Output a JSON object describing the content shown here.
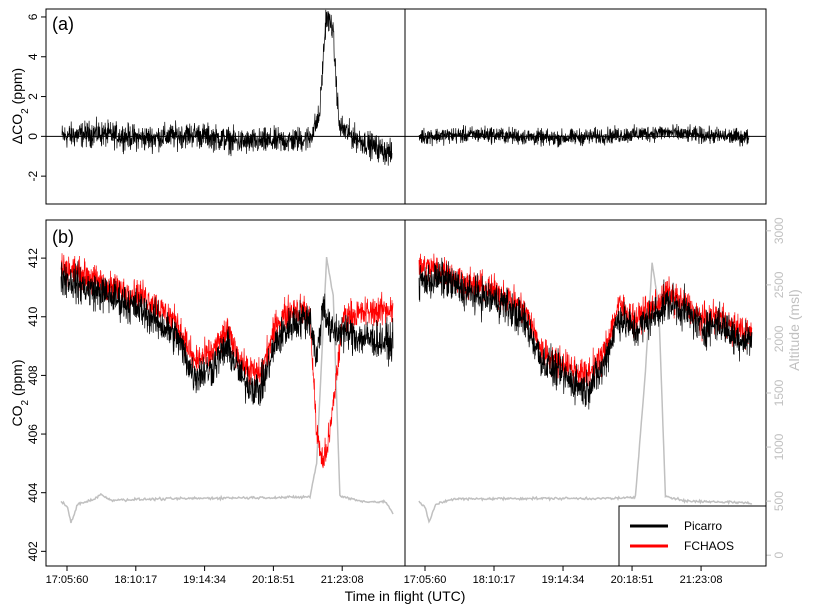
{
  "chart_data": [
    {
      "type": "line",
      "panel_label": "(a)",
      "ylabel_main": "ΔCO",
      "ylabel_sub": "2",
      "ylabel_unit": " (ppm)",
      "ylim": [
        -3.4,
        6.4
      ],
      "yticks": [
        "-2",
        "0",
        "2",
        "4",
        "6"
      ],
      "reference_line_y": 0,
      "series": [
        {
          "color": "#000000",
          "segment1": {
            "start": 0.0,
            "end": 1.0,
            "baseline": [
              [
                0,
                0
              ],
              [
                0.1,
                0.15
              ],
              [
                0.25,
                -0.1
              ],
              [
                0.4,
                0.1
              ],
              [
                0.55,
                -0.3
              ],
              [
                0.7,
                -0.2
              ],
              [
                0.75,
                -0.1
              ],
              [
                0.78,
                1.0
              ],
              [
                0.8,
                6.0
              ],
              [
                0.82,
                5.5
              ],
              [
                0.84,
                0.5
              ],
              [
                0.88,
                0
              ],
              [
                0.93,
                -0.4
              ],
              [
                1.0,
                -0.9
              ]
            ]
          },
          "segment2": {
            "start": 0.0,
            "end": 1.0,
            "baseline": [
              [
                0,
                0
              ],
              [
                0.2,
                0.1
              ],
              [
                0.4,
                -0.1
              ],
              [
                0.6,
                0.05
              ],
              [
                0.75,
                0.2
              ],
              [
                0.8,
                0.1
              ],
              [
                1.0,
                -0.05
              ]
            ]
          }
        }
      ]
    },
    {
      "type": "line",
      "panel_label": "(b)",
      "ylabel_main": "CO",
      "ylabel_sub": "2",
      "ylabel_unit": " (ppm)",
      "ylim": [
        401.5,
        413.3
      ],
      "yticks": [
        "402",
        "404",
        "406",
        "408",
        "410",
        "412"
      ],
      "ylabel_right": "Altitude (msl)",
      "ylim_right": [
        -100,
        3100
      ],
      "yticks_right": [
        "0",
        "500",
        "1000",
        "1500",
        "2000",
        "2500",
        "3000"
      ],
      "xlabel": "Time in flight (UTC)",
      "xticks": [
        "17:05:60",
        "18:10:17",
        "19:14:34",
        "20:18:51",
        "21:23:08"
      ],
      "legend": {
        "placement": "bottom-right",
        "entries": [
          {
            "name": "Picarro",
            "color": "#000000"
          },
          {
            "name": "FCHAOS",
            "color": "#ff0000"
          }
        ]
      },
      "series": [
        {
          "name": "Picarro",
          "color": "#000000",
          "seg1": [
            [
              0,
              411.4
            ],
            [
              0.07,
              411.0
            ],
            [
              0.15,
              410.7
            ],
            [
              0.25,
              410.2
            ],
            [
              0.35,
              409.3
            ],
            [
              0.4,
              408.0
            ],
            [
              0.45,
              408.2
            ],
            [
              0.5,
              409.0
            ],
            [
              0.55,
              407.8
            ],
            [
              0.6,
              407.5
            ],
            [
              0.65,
              409.2
            ],
            [
              0.7,
              409.8
            ],
            [
              0.75,
              410.0
            ],
            [
              0.77,
              408.5
            ],
            [
              0.79,
              410.5
            ],
            [
              0.81,
              409.5
            ],
            [
              0.85,
              409.5
            ],
            [
              0.9,
              409.3
            ],
            [
              0.95,
              409.2
            ],
            [
              1.0,
              409.1
            ]
          ],
          "seg2": [
            [
              0,
              411.2
            ],
            [
              0.07,
              411.3
            ],
            [
              0.15,
              410.8
            ],
            [
              0.25,
              410.5
            ],
            [
              0.32,
              409.8
            ],
            [
              0.37,
              408.5
            ],
            [
              0.43,
              408.0
            ],
            [
              0.5,
              407.5
            ],
            [
              0.55,
              408.2
            ],
            [
              0.6,
              410.0
            ],
            [
              0.65,
              409.5
            ],
            [
              0.7,
              410.0
            ],
            [
              0.75,
              410.5
            ],
            [
              0.8,
              410.2
            ],
            [
              0.85,
              409.6
            ],
            [
              0.9,
              409.8
            ],
            [
              0.95,
              409.3
            ],
            [
              1.0,
              409.2
            ]
          ]
        },
        {
          "name": "FCHAOS",
          "color": "#ff0000",
          "seg1": [
            [
              0,
              411.7
            ],
            [
              0.07,
              411.4
            ],
            [
              0.15,
              411.0
            ],
            [
              0.25,
              410.7
            ],
            [
              0.35,
              409.8
            ],
            [
              0.4,
              408.5
            ],
            [
              0.45,
              408.7
            ],
            [
              0.5,
              409.5
            ],
            [
              0.55,
              408.3
            ],
            [
              0.6,
              408.0
            ],
            [
              0.65,
              409.8
            ],
            [
              0.7,
              410.3
            ],
            [
              0.75,
              410.1
            ],
            [
              0.77,
              406.0
            ],
            [
              0.79,
              405.0
            ],
            [
              0.81,
              406.0
            ],
            [
              0.85,
              410.0
            ],
            [
              0.9,
              410.1
            ],
            [
              0.95,
              410.2
            ],
            [
              1.0,
              410.3
            ]
          ],
          "seg2": [
            [
              0,
              411.7
            ],
            [
              0.07,
              411.6
            ],
            [
              0.15,
              411.1
            ],
            [
              0.25,
              410.8
            ],
            [
              0.32,
              410.2
            ],
            [
              0.37,
              408.8
            ],
            [
              0.43,
              408.4
            ],
            [
              0.5,
              408.0
            ],
            [
              0.55,
              408.6
            ],
            [
              0.6,
              410.4
            ],
            [
              0.65,
              409.9
            ],
            [
              0.7,
              410.3
            ],
            [
              0.75,
              410.8
            ],
            [
              0.8,
              410.4
            ],
            [
              0.85,
              409.9
            ],
            [
              0.9,
              410.0
            ],
            [
              0.95,
              409.6
            ],
            [
              1.0,
              409.4
            ]
          ]
        },
        {
          "name": "Altitude",
          "color": "#c0c0c0",
          "seg1": [
            [
              0,
              500
            ],
            [
              0.02,
              440
            ],
            [
              0.03,
              300
            ],
            [
              0.05,
              470
            ],
            [
              0.1,
              520
            ],
            [
              0.12,
              560
            ],
            [
              0.15,
              510
            ],
            [
              0.3,
              520
            ],
            [
              0.5,
              530
            ],
            [
              0.7,
              535
            ],
            [
              0.75,
              540
            ],
            [
              0.77,
              850
            ],
            [
              0.8,
              2750
            ],
            [
              0.82,
              2400
            ],
            [
              0.84,
              550
            ],
            [
              0.9,
              500
            ],
            [
              0.98,
              490
            ],
            [
              1.0,
              380
            ]
          ],
          "seg2": [
            [
              0,
              500
            ],
            [
              0.02,
              430
            ],
            [
              0.03,
              300
            ],
            [
              0.05,
              470
            ],
            [
              0.1,
              520
            ],
            [
              0.15,
              520
            ],
            [
              0.3,
              525
            ],
            [
              0.5,
              525
            ],
            [
              0.6,
              525
            ],
            [
              0.65,
              540
            ],
            [
              0.68,
              1700
            ],
            [
              0.7,
              2700
            ],
            [
              0.72,
              2300
            ],
            [
              0.74,
              550
            ],
            [
              0.8,
              500
            ],
            [
              0.95,
              490
            ],
            [
              1.0,
              480
            ]
          ]
        }
      ]
    }
  ]
}
